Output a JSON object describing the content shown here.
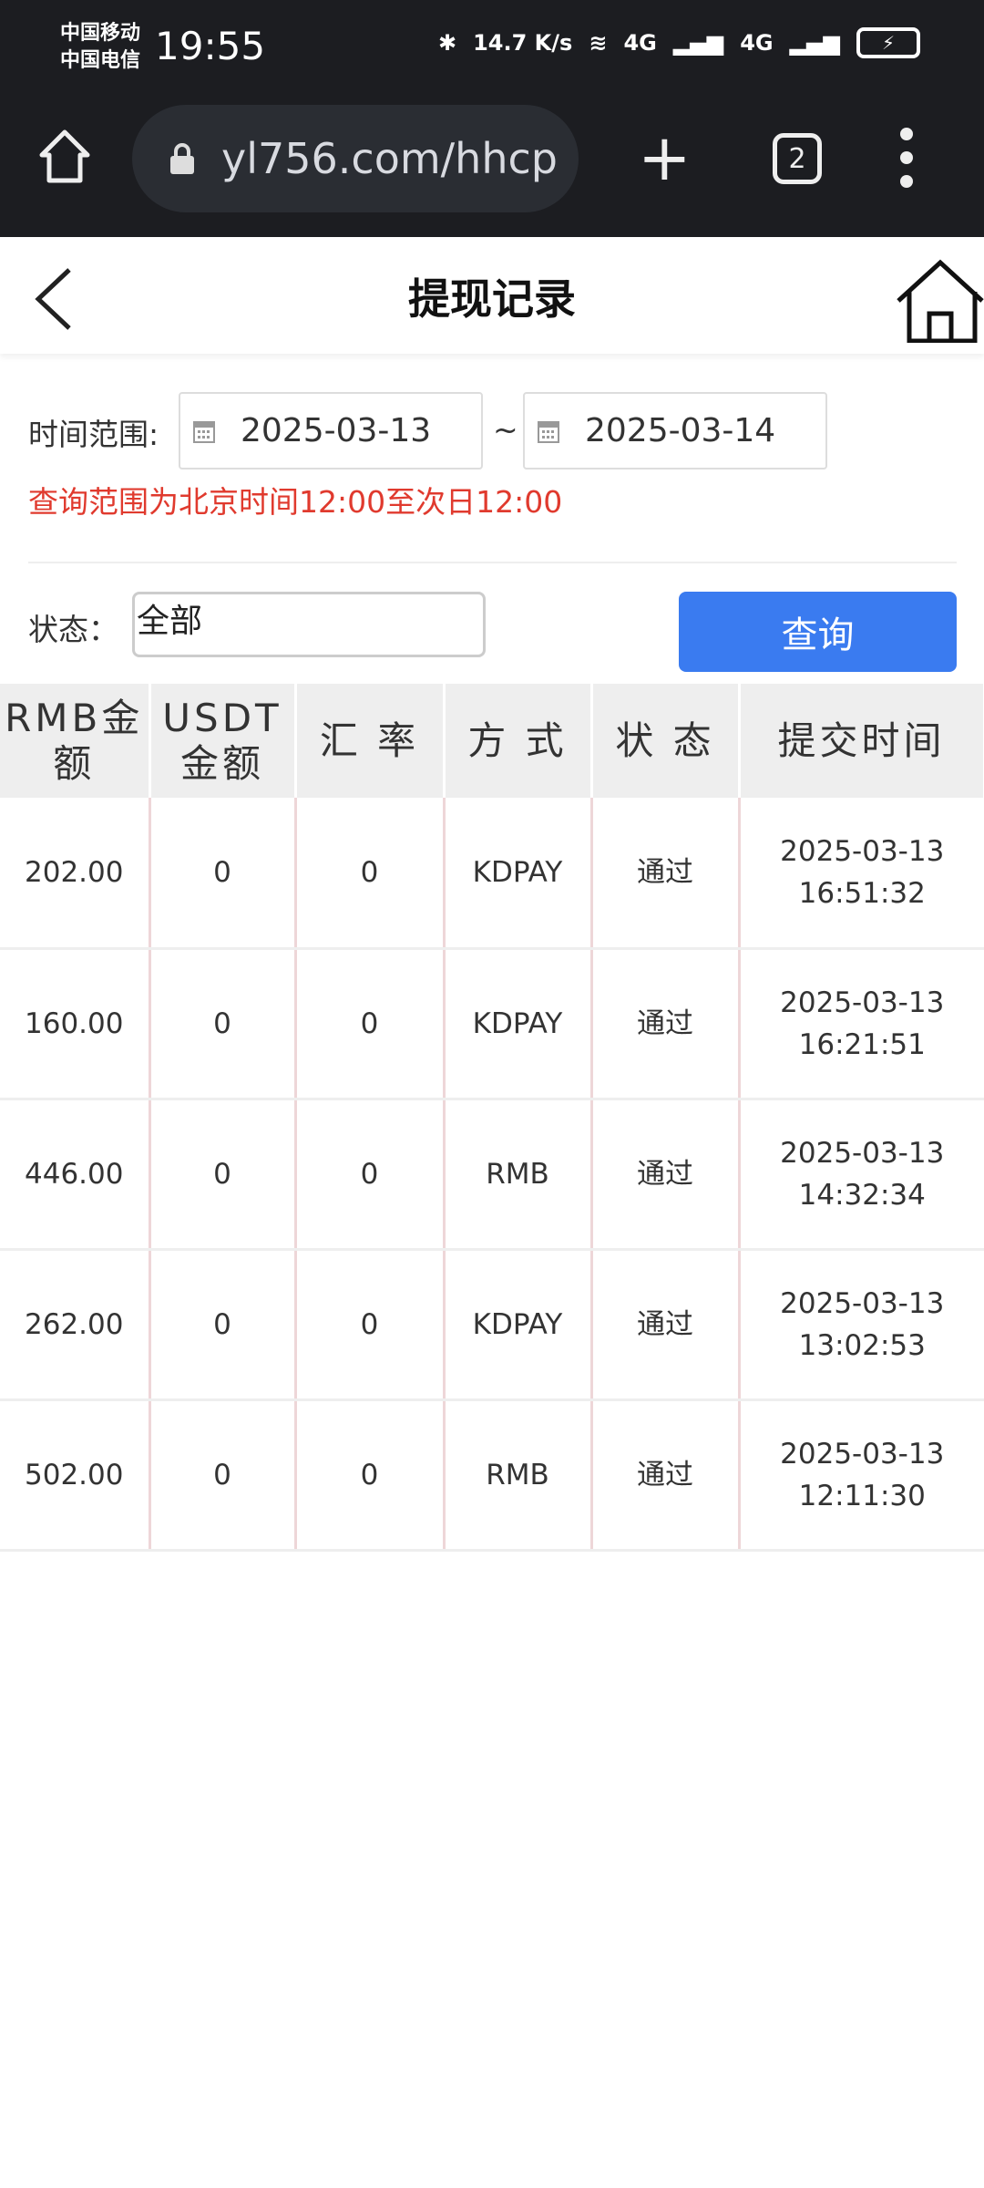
{
  "statusbar": {
    "carrier1": "中国移动",
    "carrier2": "中国电信",
    "time": "19:55",
    "net_speed": "14.7 K/s",
    "signal1": "4G",
    "signal2": "4G"
  },
  "browser": {
    "url": "yl756.com/hhcp",
    "tab_count": "2"
  },
  "header": {
    "title": "提现记录"
  },
  "filters": {
    "time_range_label": "时间范围:",
    "start_date": "2025-03-13",
    "separator": "~",
    "end_date": "2025-03-14",
    "note": "查询范围为北京时间12:00至次日12:00",
    "status_label": "状态：",
    "status_value": "全部",
    "query_button": "查询"
  },
  "table": {
    "headers": [
      "RMB金额",
      "USDT金额",
      "汇 率",
      "方 式",
      "状 态",
      "提交时间"
    ],
    "rows": [
      {
        "rmb": "202.00",
        "usdt": "0",
        "rate": "0",
        "method": "KDPAY",
        "status": "通过",
        "date": "2025-03-13",
        "time": "16:51:32"
      },
      {
        "rmb": "160.00",
        "usdt": "0",
        "rate": "0",
        "method": "KDPAY",
        "status": "通过",
        "date": "2025-03-13",
        "time": "16:21:51"
      },
      {
        "rmb": "446.00",
        "usdt": "0",
        "rate": "0",
        "method": "RMB",
        "status": "通过",
        "date": "2025-03-13",
        "time": "14:32:34"
      },
      {
        "rmb": "262.00",
        "usdt": "0",
        "rate": "0",
        "method": "KDPAY",
        "status": "通过",
        "date": "2025-03-13",
        "time": "13:02:53"
      },
      {
        "rmb": "502.00",
        "usdt": "0",
        "rate": "0",
        "method": "RMB",
        "status": "通过",
        "date": "2025-03-13",
        "time": "12:11:30"
      }
    ]
  },
  "colors": {
    "accent": "#3a7bf0",
    "note": "#e03a2e",
    "topbar": "#1c1d21"
  }
}
